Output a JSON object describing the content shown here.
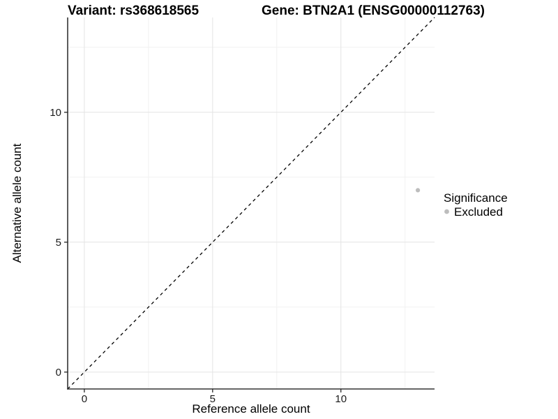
{
  "title": {
    "variant": "Variant: rs368618565",
    "gene": "Gene: BTN2A1 (ENSG00000112763)"
  },
  "axes": {
    "x": {
      "label": "Reference allele count"
    },
    "y": {
      "label": "Alternative allele count"
    }
  },
  "legend": {
    "title": "Significance",
    "items": [
      {
        "label": "Excluded",
        "color": "#bdbdbd"
      }
    ]
  },
  "colors": {
    "background": "#ffffff",
    "axis_line": "#333333",
    "tick_mark": "#262626",
    "grid_major": "#e4e4e4",
    "grid_minor": "#f1f1f1",
    "reference_line": "#000000",
    "point": "#bdbdbd"
  },
  "chart_data": {
    "type": "scatter",
    "title": "Variant: rs368618565    Gene: BTN2A1 (ENSG00000112763)",
    "xlabel": "Reference allele count",
    "ylabel": "Alternative allele count",
    "xlim": [
      -0.65,
      13.65
    ],
    "ylim": [
      -0.65,
      13.65
    ],
    "x_ticks": [
      0,
      5,
      10
    ],
    "y_ticks": [
      0,
      5,
      10
    ],
    "x_minor_ticks": [
      2.5,
      7.5,
      12.5
    ],
    "y_minor_ticks": [
      2.5,
      7.5,
      12.5
    ],
    "grid": true,
    "legend_position": "right",
    "legend_title": "Significance",
    "series": [
      {
        "name": "Excluded",
        "color": "#bdbdbd",
        "points": [
          {
            "x": 13,
            "y": 7
          }
        ]
      }
    ],
    "reference_line": {
      "type": "identity",
      "slope": 1,
      "intercept": 0,
      "style": "dashed",
      "color": "#000000"
    }
  }
}
